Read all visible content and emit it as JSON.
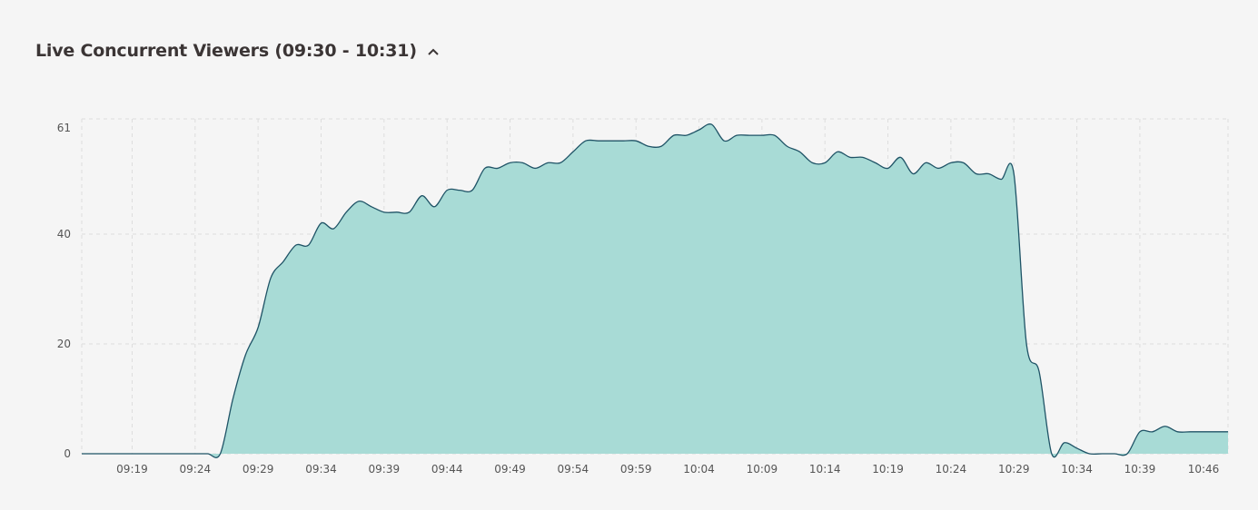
{
  "header": {
    "title": "Live Concurrent Viewers (09:30 - 10:31)",
    "collapse_icon": "chevron-up-icon"
  },
  "colors": {
    "fill": "#a8dbd6",
    "line": "#1f5366",
    "grid": "#dddddd",
    "background": "#f5f5f5"
  },
  "chart_data": {
    "type": "area",
    "title": "Live Concurrent Viewers (09:30 - 10:31)",
    "xlabel": "",
    "ylabel": "",
    "ylim": [
      0,
      61
    ],
    "yticks": [
      0,
      20,
      40,
      61
    ],
    "xticks": [
      "09:19",
      "09:24",
      "09:29",
      "09:34",
      "09:39",
      "09:44",
      "09:49",
      "09:54",
      "09:59",
      "10:04",
      "10:09",
      "10:14",
      "10:19",
      "10:24",
      "10:29",
      "10:34",
      "10:39",
      "10:46"
    ],
    "grid": true,
    "x": [
      "09:15",
      "09:16",
      "09:17",
      "09:18",
      "09:19",
      "09:20",
      "09:21",
      "09:22",
      "09:23",
      "09:24",
      "09:25",
      "09:26",
      "09:27",
      "09:28",
      "09:29",
      "09:30",
      "09:31",
      "09:32",
      "09:33",
      "09:34",
      "09:35",
      "09:36",
      "09:37",
      "09:38",
      "09:39",
      "09:40",
      "09:41",
      "09:42",
      "09:43",
      "09:44",
      "09:45",
      "09:46",
      "09:47",
      "09:48",
      "09:49",
      "09:50",
      "09:51",
      "09:52",
      "09:53",
      "09:54",
      "09:55",
      "09:56",
      "09:57",
      "09:58",
      "09:59",
      "10:00",
      "10:01",
      "10:02",
      "10:03",
      "10:04",
      "10:05",
      "10:06",
      "10:07",
      "10:08",
      "10:09",
      "10:10",
      "10:11",
      "10:12",
      "10:13",
      "10:14",
      "10:15",
      "10:16",
      "10:17",
      "10:18",
      "10:19",
      "10:20",
      "10:21",
      "10:22",
      "10:23",
      "10:24",
      "10:25",
      "10:26",
      "10:27",
      "10:28",
      "10:29",
      "10:30",
      "10:31",
      "10:32",
      "10:33",
      "10:34",
      "10:35",
      "10:36",
      "10:37",
      "10:38",
      "10:39",
      "10:40",
      "10:41",
      "10:42",
      "10:43",
      "10:44",
      "10:45",
      "10:46"
    ],
    "values": [
      0,
      0,
      0,
      0,
      0,
      0,
      0,
      0,
      0,
      0,
      0,
      0,
      10,
      18,
      23,
      32,
      35,
      38,
      38,
      42,
      41,
      44,
      46,
      45,
      44,
      44,
      44,
      47,
      45,
      48,
      48,
      48,
      52,
      52,
      53,
      53,
      52,
      53,
      53,
      55,
      57,
      57,
      57,
      57,
      57,
      56,
      56,
      58,
      58,
      59,
      60,
      57,
      58,
      58,
      58,
      58,
      56,
      55,
      53,
      53,
      55,
      54,
      54,
      53,
      52,
      54,
      51,
      53,
      52,
      53,
      53,
      51,
      51,
      50,
      51,
      20,
      15,
      0,
      2,
      1,
      0,
      0,
      0,
      0,
      4,
      4,
      5,
      4,
      4,
      4,
      4,
      4
    ]
  }
}
